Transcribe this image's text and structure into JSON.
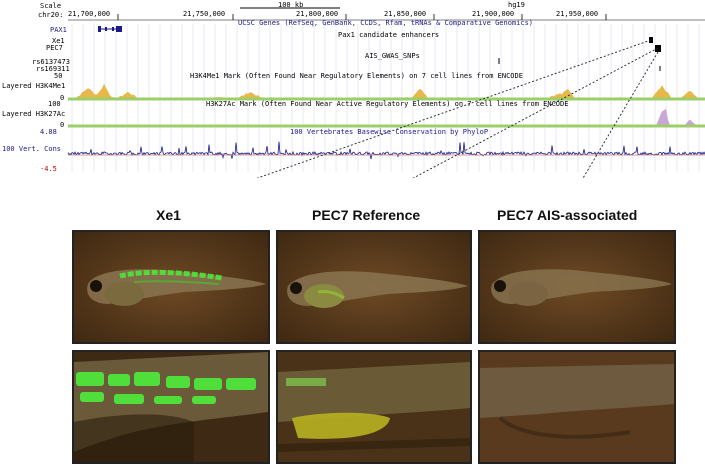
{
  "browser": {
    "scale_label": "Scale",
    "chrom_label": "chr20:",
    "scale_bar": "100 kb",
    "assembly": "hg19",
    "ruler_ticks": [
      {
        "label": "21,700,000"
      },
      {
        "label": "21,750,000"
      },
      {
        "label": "21,800,000"
      },
      {
        "label": "21,850,000"
      },
      {
        "label": "21,900,000"
      },
      {
        "label": "21,950,000"
      }
    ],
    "genes_title": "UCSC Genes (RefSeq, GenBank, CCDS, Rfam, tRNAs & Comparative Genomics)",
    "gene_name": "PAX1",
    "enhancers_title": "Pax1 candidate enhancers",
    "enhancer_labels": [
      "Xe1",
      "PEC7"
    ],
    "snps_title": "AIS_GWAS_SNPs",
    "snp_labels": [
      "rs6137473",
      "rs169311"
    ],
    "h3k4_max": "50",
    "h3k4_label": "Layered H3K4Me1",
    "h3k4_min": "0",
    "h3k4_title": "H3K4Me1 Mark (Often Found Near Regulatory Elements) on 7 cell lines from ENCODE",
    "h3k27_max": "100",
    "h3k27_label": "Layered H3K27Ac",
    "h3k27_min": "0",
    "h3k27_title": "H3K27Ac Mark (Often Found Near Active Regulatory Elements) on 7 cell lines from ENCODE",
    "cons_max": "4.88",
    "cons_label": "100 Vert. Cons",
    "cons_min": "-4.5",
    "cons_title": "100 Vertebrates Basewise Conservation by PhyloP"
  },
  "panels": [
    {
      "title": "Xe1"
    },
    {
      "title": "PEC7 Reference"
    },
    {
      "title": "PEC7 AIS-associated"
    }
  ],
  "colors": {
    "h3k4": "#e8b84a",
    "h3k27": "#c9a8d8",
    "track_green": "#9ccf6a",
    "conservation": "#1a1a8a",
    "gfp": "#4ee63a",
    "panel_bg": "#5a3c1c"
  }
}
